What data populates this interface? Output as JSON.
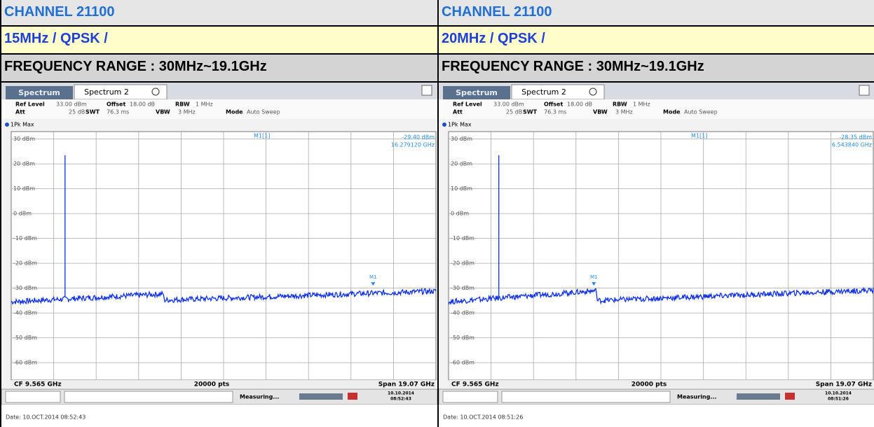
{
  "panels": [
    {
      "channel": "CHANNEL 21100",
      "mode": "15MHz / QPSK /",
      "range": "FREQUENCY RANGE : 30MHz~19.1GHz",
      "analyzer": {
        "tabs": [
          "Spectrum",
          "Spectrum 2"
        ],
        "ref_level_label": "Ref Level",
        "ref_level": "33.00 dBm",
        "offset_label": "Offset",
        "offset": "18.00 dB",
        "rbw_label": "RBW",
        "rbw": "1 MHz",
        "att_label": "Att",
        "att": "25 dB",
        "swt_label": "SWT",
        "swt": "76.3 ms",
        "vbw_label": "VBW",
        "vbw": "3 MHz",
        "sweep_label": "Mode",
        "sweep": "Auto Sweep",
        "trace_label": "1Pk Max",
        "marker_label": "M1[1]",
        "marker_level": "-29.40 dBm",
        "marker_freq": "16.279120 GHz",
        "marker_tag": "M1",
        "y_labels": [
          "30 dBm",
          "20 dBm",
          "10 dBm",
          "0 dBm",
          "-10 dBm",
          "-20 dBm",
          "-30 dBm",
          "-40 dBm",
          "-50 dBm",
          "-60 dBm"
        ],
        "cf": "CF 9.565 GHz",
        "points": "20000 pts",
        "span": "Span 19.07 GHz",
        "status": "Measuring...",
        "clock_date": "10.10.2014",
        "clock_time": "08:52:43",
        "date": "Date: 10.OCT.2014  08:52:43"
      }
    },
    {
      "channel": "CHANNEL 21100",
      "mode": "20MHz / QPSK /",
      "range": "FREQUENCY RANGE : 30MHz~19.1GHz",
      "analyzer": {
        "tabs": [
          "Spectrum",
          "Spectrum 2"
        ],
        "ref_level_label": "Ref Level",
        "ref_level": "33.00 dBm",
        "offset_label": "Offset",
        "offset": "18.00 dB",
        "rbw_label": "RBW",
        "rbw": "1 MHz",
        "att_label": "Att",
        "att": "25 dB",
        "swt_label": "SWT",
        "swt": "76.3 ms",
        "vbw_label": "VBW",
        "vbw": "3 MHz",
        "sweep_label": "Mode",
        "sweep": "Auto Sweep",
        "trace_label": "1Pk Max",
        "marker_label": "M1[1]",
        "marker_level": "-28.35 dBm",
        "marker_freq": "6.543840 GHz",
        "marker_tag": "M1",
        "y_labels": [
          "30 dBm",
          "20 dBm",
          "10 dBm",
          "0 dBm",
          "-10 dBm",
          "-20 dBm",
          "-30 dBm",
          "-40 dBm",
          "-50 dBm",
          "-60 dBm"
        ],
        "cf": "CF 9.565 GHz",
        "points": "20000 pts",
        "span": "Span 19.07 GHz",
        "status": "Measuring...",
        "clock_date": "10.10.2014",
        "clock_time": "08:51:26",
        "date": "Date: 10.OCT.2014  08:51:26"
      }
    }
  ]
}
